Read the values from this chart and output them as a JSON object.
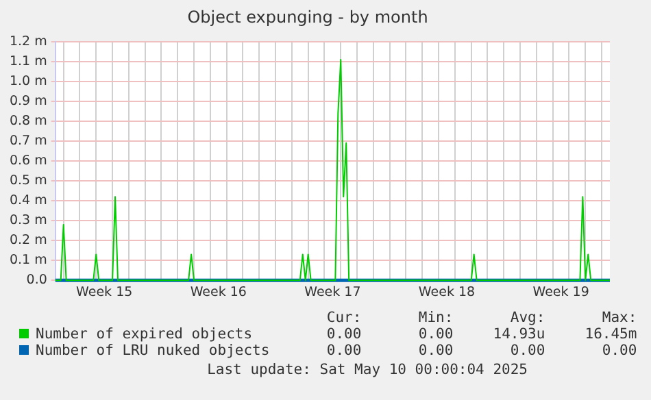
{
  "chart_data": {
    "type": "line",
    "title": "Object expunging - by month",
    "categories": [
      null,
      null,
      null,
      null,
      null,
      null,
      null,
      null,
      null,
      null,
      null,
      null,
      null,
      null,
      null,
      null,
      null,
      null,
      "Week 15",
      null,
      null,
      null,
      null,
      null,
      null,
      null,
      null,
      null,
      null,
      null,
      null,
      null,
      null,
      null,
      null,
      null,
      null,
      null,
      null,
      null,
      null,
      null,
      null,
      null,
      null,
      null,
      null,
      null,
      null,
      null,
      null,
      null,
      null,
      null,
      null,
      null,
      null,
      null,
      null,
      null,
      "Week 16",
      null,
      null,
      null,
      null,
      null,
      null,
      null,
      null,
      null,
      null,
      null,
      null,
      null,
      null,
      null,
      null,
      null,
      null,
      null,
      null,
      null,
      null,
      null,
      null,
      null,
      null,
      null,
      null,
      null,
      null,
      null,
      null,
      null,
      null,
      null,
      null,
      null,
      null,
      null,
      null,
      null,
      "Week 17",
      null,
      null,
      null,
      null,
      null,
      null,
      null,
      null,
      null,
      null,
      null,
      null,
      null,
      null,
      null,
      null,
      null,
      null,
      null,
      null,
      null,
      null,
      null,
      null,
      null,
      null,
      null,
      null,
      null,
      null,
      null,
      null,
      null,
      null,
      null,
      null,
      null,
      null,
      null,
      null,
      null,
      "Week 18",
      null,
      null,
      null,
      null,
      null,
      null,
      null,
      null,
      null,
      null,
      null,
      null,
      null,
      null,
      null,
      null,
      null,
      null,
      null,
      null,
      null,
      null,
      null,
      null,
      null,
      null,
      null,
      null,
      null,
      null,
      null,
      null,
      null,
      null,
      null,
      null,
      null,
      null,
      null,
      null,
      null,
      "Week 19",
      null,
      null,
      null,
      null,
      null,
      null,
      null,
      null,
      null,
      null,
      null,
      null,
      null,
      null,
      null,
      null,
      null,
      null
    ],
    "ylim": [
      0,
      1.2
    ],
    "yticks": [
      {
        "value": 0,
        "label": "0.0"
      },
      {
        "value": 0.1,
        "label": "0.1 m"
      },
      {
        "value": 0.2,
        "label": "0.2 m"
      },
      {
        "value": 0.3,
        "label": "0.3 m"
      },
      {
        "value": 0.4,
        "label": "0.4 m"
      },
      {
        "value": 0.5,
        "label": "0.5 m"
      },
      {
        "value": 0.6,
        "label": "0.6 m"
      },
      {
        "value": 0.7,
        "label": "0.7 m"
      },
      {
        "value": 0.8,
        "label": "0.8 m"
      },
      {
        "value": 0.9,
        "label": "0.9 m"
      },
      {
        "value": 1.0,
        "label": "1.0 m"
      },
      {
        "value": 1.1,
        "label": "1.1 m"
      },
      {
        "value": 1.2,
        "label": "1.2 m"
      }
    ],
    "grid": true,
    "legend": "bottom",
    "marker": "none",
    "line_style": "solid",
    "series": [
      {
        "name": "Number of expired objects",
        "color": "#00cc00",
        "values": [
          0,
          0,
          0,
          0.28,
          0,
          0,
          0,
          0,
          0,
          0,
          0,
          0,
          0,
          0,
          0,
          0.13,
          0,
          0,
          0,
          0,
          0,
          0,
          0.42,
          0,
          0,
          0,
          0,
          0,
          0,
          0,
          0,
          0,
          0,
          0,
          0,
          0,
          0,
          0,
          0,
          0,
          0,
          0,
          0,
          0,
          0,
          0,
          0,
          0,
          0,
          0,
          0.13,
          0,
          0,
          0,
          0,
          0,
          0,
          0,
          0,
          0,
          0,
          0,
          0,
          0,
          0,
          0,
          0,
          0,
          0,
          0,
          0,
          0,
          0,
          0,
          0,
          0,
          0,
          0,
          0,
          0,
          0,
          0,
          0,
          0,
          0,
          0,
          0,
          0,
          0,
          0,
          0,
          0.13,
          0,
          0.13,
          0,
          0,
          0,
          0,
          0,
          0,
          0,
          0,
          0,
          0,
          0.84,
          1.11,
          0.42,
          0.69,
          0,
          0,
          0,
          0,
          0,
          0,
          0,
          0,
          0,
          0,
          0,
          0,
          0,
          0,
          0,
          0,
          0,
          0,
          0,
          0,
          0,
          0,
          0,
          0,
          0,
          0,
          0,
          0,
          0,
          0,
          0,
          0,
          0,
          0,
          0,
          0,
          0,
          0,
          0,
          0,
          0,
          0,
          0,
          0,
          0,
          0,
          0.13,
          0,
          0,
          0,
          0,
          0,
          0,
          0,
          0,
          0,
          0,
          0,
          0,
          0,
          0,
          0,
          0,
          0,
          0,
          0,
          0,
          0,
          0,
          0,
          0,
          0,
          0,
          0,
          0,
          0,
          0,
          0,
          0,
          0,
          0,
          0,
          0,
          0,
          0,
          0,
          0.42,
          0,
          0.13,
          0,
          0,
          0,
          0,
          0,
          0,
          0,
          0
        ]
      },
      {
        "name": "Number of LRU nuked objects",
        "color": "#0066b3",
        "values": [
          0,
          0,
          0,
          0,
          0,
          0,
          0,
          0,
          0,
          0,
          0,
          0,
          0,
          0,
          0,
          0,
          0,
          0,
          0,
          0,
          0,
          0,
          0,
          0,
          0,
          0,
          0,
          0,
          0,
          0,
          0,
          0,
          0,
          0,
          0,
          0,
          0,
          0,
          0,
          0,
          0,
          0,
          0,
          0,
          0,
          0,
          0,
          0,
          0,
          0,
          0,
          0,
          0,
          0,
          0,
          0,
          0,
          0,
          0,
          0,
          0,
          0,
          0,
          0,
          0,
          0,
          0,
          0,
          0,
          0,
          0,
          0,
          0,
          0,
          0,
          0,
          0,
          0,
          0,
          0,
          0,
          0,
          0,
          0,
          0,
          0,
          0,
          0,
          0,
          0,
          0,
          0,
          0,
          0,
          0,
          0,
          0,
          0,
          0,
          0,
          0,
          0,
          0,
          0,
          0,
          0,
          0,
          0,
          0,
          0,
          0,
          0,
          0,
          0,
          0,
          0,
          0,
          0,
          0,
          0,
          0,
          0,
          0,
          0,
          0,
          0,
          0,
          0,
          0,
          0,
          0,
          0,
          0,
          0,
          0,
          0,
          0,
          0,
          0,
          0,
          0,
          0,
          0,
          0,
          0,
          0,
          0,
          0,
          0,
          0,
          0,
          0,
          0,
          0,
          0,
          0,
          0,
          0,
          0,
          0,
          0,
          0,
          0,
          0,
          0,
          0,
          0,
          0,
          0,
          0,
          0,
          0,
          0,
          0,
          0,
          0,
          0,
          0,
          0,
          0,
          0,
          0,
          0,
          0,
          0,
          0,
          0,
          0,
          0,
          0,
          0,
          0,
          0,
          0,
          0,
          0,
          0,
          0,
          0,
          0,
          0,
          0,
          0,
          0,
          0
        ]
      }
    ],
    "annotations": [
      "Cur:",
      "Min:",
      "Avg:",
      "Max:",
      "0.00",
      "0.00",
      "14.93u",
      "16.45m",
      "0.00",
      "0.00",
      "0.00",
      "0.00",
      "Last update: Sat May 10 00:00:04 2025"
    ]
  }
}
